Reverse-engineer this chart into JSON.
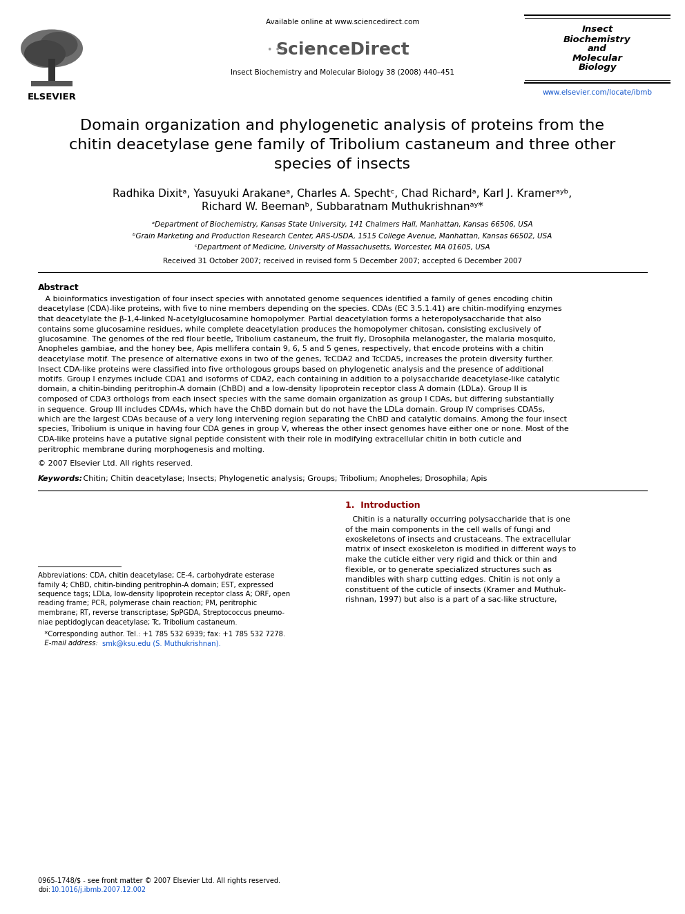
{
  "background_color": "#ffffff",
  "page_width": 9.92,
  "page_height": 13.23,
  "header": {
    "available_online": "Available online at www.sciencedirect.com",
    "journal_line": "Insect Biochemistry and Molecular Biology 38 (2008) 440–451",
    "journal_box_lines": [
      "Insect",
      "Biochemistry",
      "and",
      "Molecular",
      "Biology"
    ],
    "url": "www.elsevier.com/locate/ibmb",
    "elsevier_text": "ELSEVIER"
  },
  "title_line1": "Domain organization and phylogenetic analysis of proteins from the",
  "title_line2_pre": "chitin deacetylase gene family of ",
  "title_line2_italic": "Tribolium castaneum",
  "title_line2_post": " and three other",
  "title_line3": "species of insects",
  "authors_line1": "Radhika Dixitᵃ, Yasuyuki Arakaneᵃ, Charles A. Spechtᶜ, Chad Richardᵃ, Karl J. Kramerᵃʸᵇ,",
  "authors_line2": "Richard W. Beemanᵇ, Subbaratnam Muthukrishnanᵃʸ*",
  "affil_a": "ᵃDepartment of Biochemistry, Kansas State University, 141 Chalmers Hall, Manhattan, Kansas 66506, USA",
  "affil_b": "ᵇGrain Marketing and Production Research Center, ARS-USDA, 1515 College Avenue, Manhattan, Kansas 66502, USA",
  "affil_c": "ᶜDepartment of Medicine, University of Massachusetts, Worcester, MA 01605, USA",
  "received": "Received 31 October 2007; received in revised form 5 December 2007; accepted 6 December 2007",
  "abstract_title": "Abstract",
  "abstract_lines": [
    "   A bioinformatics investigation of four insect species with annotated genome sequences identified a family of genes encoding chitin",
    "deacetylase (CDA)-like proteins, with five to nine members depending on the species. CDAs (EC 3.5.1.41) are chitin-modifying enzymes",
    "that deacetylate the β-1,4-linked N-acetylglucosamine homopolymer. Partial deacetylation forms a heteropolysaccharide that also",
    "contains some glucosamine residues, while complete deacetylation produces the homopolymer chitosan, consisting exclusively of",
    "glucosamine. The genomes of the red flour beetle, Tribolium castaneum, the fruit fly, Drosophila melanogaster, the malaria mosquito,",
    "Anopheles gambiae, and the honey bee, Apis mellifera contain 9, 6, 5 and 5 genes, respectively, that encode proteins with a chitin",
    "deacetylase motif. The presence of alternative exons in two of the genes, TcCDA2 and TcCDA5, increases the protein diversity further.",
    "Insect CDA-like proteins were classified into five orthologous groups based on phylogenetic analysis and the presence of additional",
    "motifs. Group I enzymes include CDA1 and isoforms of CDA2, each containing in addition to a polysaccharide deacetylase-like catalytic",
    "domain, a chitin-binding peritrophin-A domain (ChBD) and a low-density lipoprotein receptor class A domain (LDLa). Group II is",
    "composed of CDA3 orthologs from each insect species with the same domain organization as group I CDAs, but differing substantially",
    "in sequence. Group III includes CDA4s, which have the ChBD domain but do not have the LDLa domain. Group IV comprises CDA5s,",
    "which are the largest CDAs because of a very long intervening region separating the ChBD and catalytic domains. Among the four insect",
    "species, Tribolium is unique in having four CDA genes in group V, whereas the other insect genomes have either one or none. Most of the",
    "CDA-like proteins have a putative signal peptide consistent with their role in modifying extracellular chitin in both cuticle and",
    "peritrophic membrane during morphogenesis and molting."
  ],
  "copyright": "© 2007 Elsevier Ltd. All rights reserved.",
  "keywords": "Keywords:  Chitin; Chitin deacetylase; Insects; Phylogenetic analysis; Groups; Tribolium; Anopheles; Drosophila; Apis",
  "section1_title": "1.  Introduction",
  "intro_lines": [
    "   Chitin is a naturally occurring polysaccharide that is one",
    "of the main components in the cell walls of fungi and",
    "exoskeletons of insects and crustaceans. The extracellular",
    "matrix of insect exoskeleton is modified in different ways to",
    "make the cuticle either very rigid and thick or thin and",
    "flexible, or to generate specialized structures such as",
    "mandibles with sharp cutting edges. Chitin is not only a",
    "constituent of the cuticle of insects (Kramer and Muthuk-",
    "rishnan, 1997) but also is a part of a sac-like structure,"
  ],
  "footnote_lines": [
    "Abbreviations: CDA, chitin deacetylase; CE-4, carbohydrate esterase",
    "family 4; ChBD, chitin-binding peritrophin-A domain; EST, expressed",
    "sequence tags; LDLa, low-density lipoprotein receptor class A; ORF, open",
    "reading frame; PCR, polymerase chain reaction; PM, peritrophic",
    "membrane; RT, reverse transcriptase; SpPGDA, Streptococcus pneumo-",
    "niae peptidoglycan deacetylase; Tc, Tribolium castaneum."
  ],
  "footnote_corresponding": "   *Corresponding author. Tel.: +1 785 532 6939; fax: +1 785 532 7278.",
  "footnote_email_pre": "   E-mail address: ",
  "footnote_email_link": "smk@ksu.edu (S. Muthukrishnan).",
  "bottom_line1": "0965-1748/$ - see front matter © 2007 Elsevier Ltd. All rights reserved.",
  "bottom_line2_pre": "doi:",
  "bottom_line2_link": "10.1016/j.ibmb.2007.12.002",
  "url_color": "#1155cc",
  "doi_color": "#1155cc",
  "section_title_color": "#8B0000"
}
